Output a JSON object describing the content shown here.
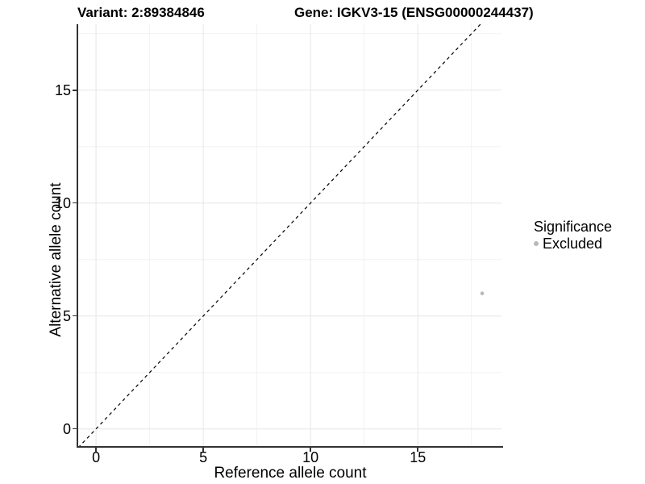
{
  "chart_data": {
    "type": "scatter",
    "titles": {
      "left": "Variant: 2:89384846",
      "right": "Gene: IGKV3-15 (ENSG00000244437)"
    },
    "xlabel": "Reference allele count",
    "ylabel": "Alternative allele count",
    "xlim": [
      -0.83,
      18.9
    ],
    "ylim": [
      -0.76,
      17.92
    ],
    "xticks": [
      0,
      5,
      10,
      15
    ],
    "yticks": [
      0,
      5,
      10,
      15
    ],
    "minor_xticks": [
      2.5,
      7.5,
      12.5,
      17.5
    ],
    "minor_yticks": [
      2.5,
      7.5,
      12.5,
      17.5
    ],
    "grid": "major and minor gridlines on white panel",
    "identity_line": {
      "show": true,
      "slope": 1,
      "intercept": 0,
      "style": "dashed"
    },
    "series": [
      {
        "name": "Excluded",
        "color": "#b8b8b8",
        "points": [
          {
            "x": 18,
            "y": 6
          }
        ]
      }
    ],
    "legend": {
      "title": "Significance",
      "position": "right",
      "items": [
        {
          "label": "Excluded",
          "color": "#b8b8b8"
        }
      ]
    }
  },
  "colors": {
    "background": "#ffffff",
    "axis_line": "#333333",
    "tick_mark": "#333333",
    "grid_major": "#e6e6e6",
    "grid_minor": "#f2f2f2",
    "identity_line": "#000000",
    "point": "#b8b8b8",
    "text": "#000000"
  }
}
